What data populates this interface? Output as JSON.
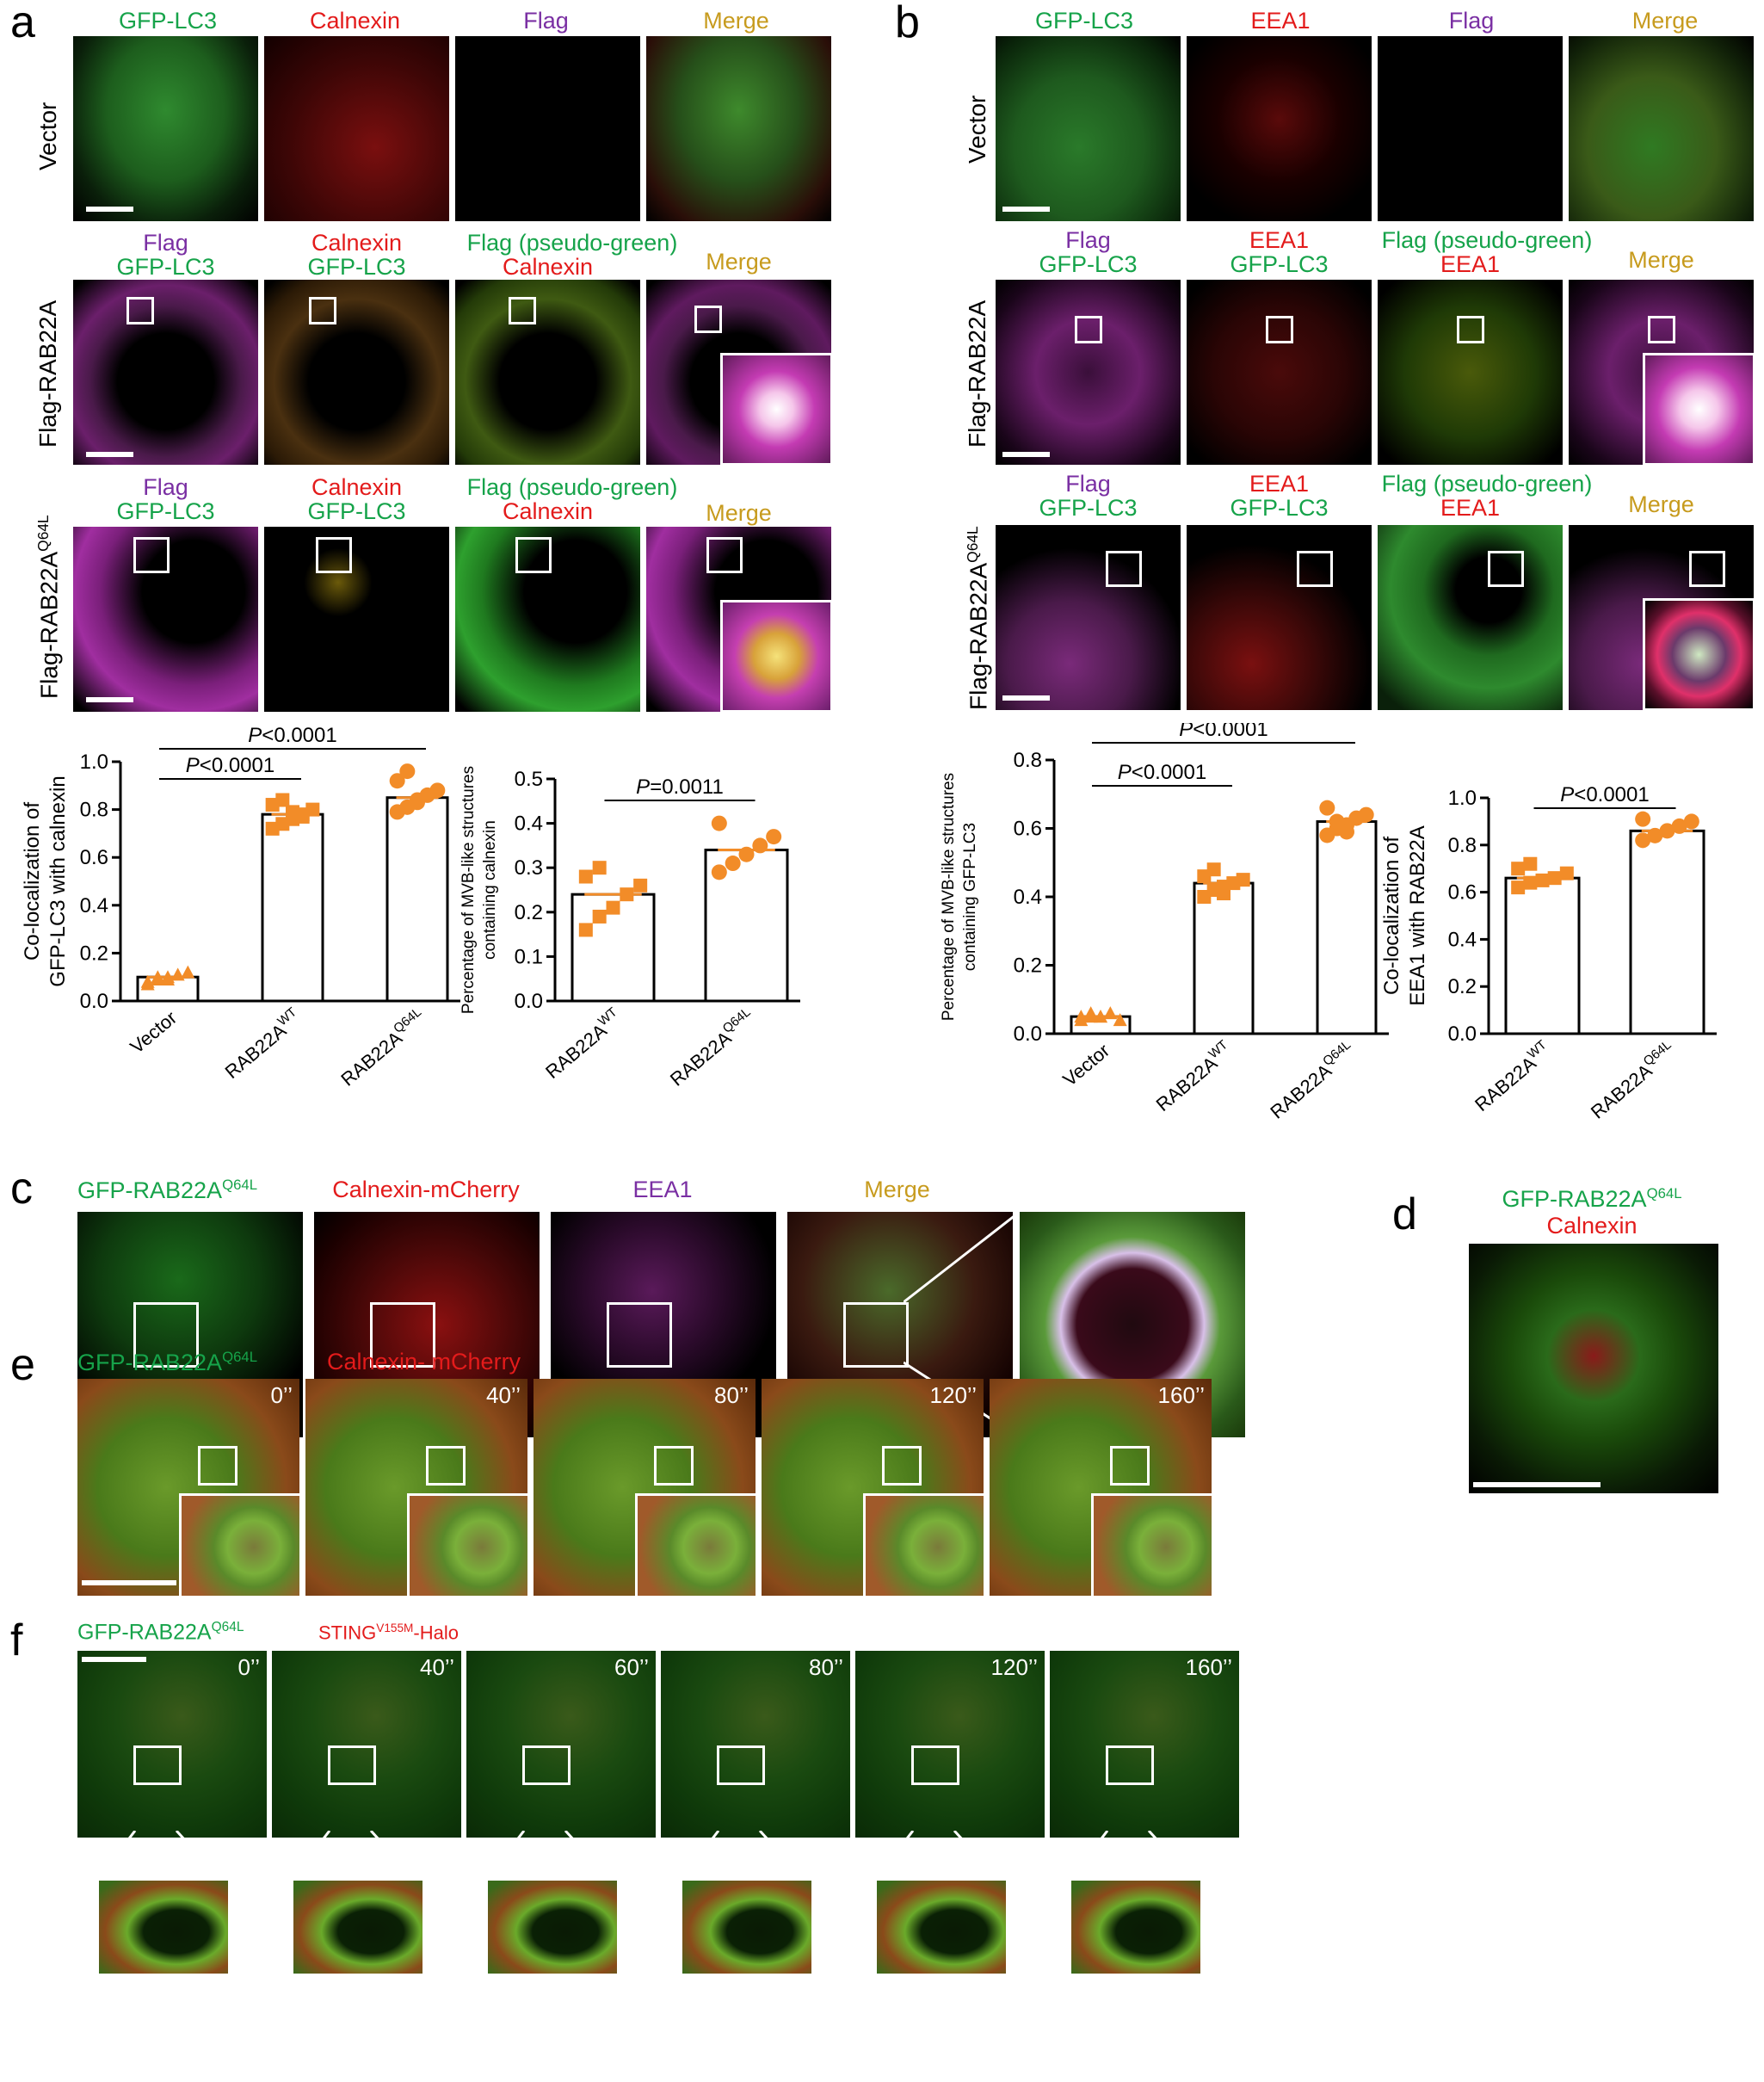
{
  "panel_letters": {
    "a": "a",
    "b": "b",
    "c": "c",
    "d": "d",
    "e": "e",
    "f": "f"
  },
  "panel_a": {
    "col_headers": [
      "GFP-LC3",
      "Calnexin",
      "Flag",
      "Merge"
    ],
    "row_labels": [
      "Vector",
      "Flag-RAB22A",
      "Flag-RAB22A^Q64L"
    ],
    "row2_headers": [
      [
        "Flag",
        "GFP-LC3"
      ],
      [
        "Calnexin",
        "GFP-LC3"
      ],
      [
        "Flag (pseudo-green)",
        "Calnexin"
      ],
      [
        "Merge"
      ]
    ],
    "row3_headers": [
      [
        "Flag",
        "GFP-LC3"
      ],
      [
        "Calnexin",
        "GFP-LC3"
      ],
      [
        "Flag (pseudo-green)",
        "Calnexin"
      ],
      [
        "Merge"
      ]
    ]
  },
  "panel_b": {
    "col_headers": [
      "GFP-LC3",
      "EEA1",
      "Flag",
      "Merge"
    ],
    "row_labels": [
      "Vector",
      "Flag-RAB22A",
      "Flag-RAB22A^Q64L"
    ],
    "row2_headers": [
      [
        "Flag",
        "GFP-LC3"
      ],
      [
        "EEA1",
        "GFP-LC3"
      ],
      [
        "Flag (pseudo-green)",
        "EEA1"
      ],
      [
        "Merge"
      ]
    ],
    "row3_headers": [
      [
        "Flag",
        "GFP-LC3"
      ],
      [
        "EEA1",
        "GFP-LC3"
      ],
      [
        "Flag (pseudo-green)",
        "EEA1"
      ],
      [
        "Merge"
      ]
    ]
  },
  "colors": {
    "green": "#16a34a",
    "red": "#e31b1b",
    "purple": "#7a2fa3",
    "gold": "#c79b1e",
    "bar_point": "#f28c28"
  },
  "chart_data": [
    {
      "type": "bar",
      "ylabel": "Co-localization of GFP-LC3 with calnexin",
      "categories": [
        "Vector",
        "RAB22A^WT",
        "RAB22A^Q64L"
      ],
      "values": [
        0.1,
        0.78,
        0.85
      ],
      "ylim": [
        0,
        1.0
      ],
      "yticks": [
        "0.0",
        "0.2",
        "0.4",
        "0.6",
        "0.8",
        "1.0"
      ],
      "points": [
        [
          0.07,
          0.09,
          0.1,
          0.11,
          0.12,
          0.08,
          0.1,
          0.09
        ],
        [
          0.72,
          0.74,
          0.76,
          0.78,
          0.8,
          0.82,
          0.84,
          0.79,
          0.77
        ],
        [
          0.79,
          0.81,
          0.84,
          0.86,
          0.88,
          0.92,
          0.96,
          0.83
        ]
      ],
      "annotations": [
        "P<0.0001",
        "P<0.0001"
      ]
    },
    {
      "type": "bar",
      "ylabel": "Percentage of MVB-like structures containing calnexin",
      "categories": [
        "RAB22A^WT",
        "RAB22A^Q64L"
      ],
      "values": [
        0.24,
        0.34
      ],
      "ylim": [
        0,
        0.5
      ],
      "yticks": [
        "0.0",
        "0.1",
        "0.2",
        "0.3",
        "0.4",
        "0.5"
      ],
      "points": [
        [
          0.16,
          0.19,
          0.21,
          0.24,
          0.26,
          0.28,
          0.3
        ],
        [
          0.29,
          0.31,
          0.33,
          0.35,
          0.37,
          0.4
        ]
      ],
      "annotations": [
        "P=0.0011"
      ]
    },
    {
      "type": "bar",
      "ylabel": "Percentage of MVB-like structures containing GFP-LC3",
      "categories": [
        "Vector",
        "RAB22A^WT",
        "RAB22A^Q64L"
      ],
      "values": [
        0.05,
        0.44,
        0.62
      ],
      "ylim": [
        0,
        0.8
      ],
      "yticks": [
        "0.0",
        "0.2",
        "0.4",
        "0.6",
        "0.8"
      ],
      "points": [
        [
          0.04,
          0.05,
          0.05,
          0.06,
          0.04,
          0.05,
          0.06,
          0.05
        ],
        [
          0.4,
          0.42,
          0.43,
          0.44,
          0.45,
          0.46,
          0.48,
          0.41
        ],
        [
          0.58,
          0.6,
          0.61,
          0.63,
          0.64,
          0.66,
          0.62,
          0.59
        ]
      ],
      "annotations": [
        "P<0.0001",
        "P<0.0001"
      ]
    },
    {
      "type": "bar",
      "ylabel": "Co-localization of EEA1 with RAB22A",
      "categories": [
        "RAB22A^WT",
        "RAB22A^Q64L"
      ],
      "values": [
        0.66,
        0.86
      ],
      "ylim": [
        0,
        1.0
      ],
      "yticks": [
        "0.0",
        "0.2",
        "0.4",
        "0.6",
        "0.8",
        "1.0"
      ],
      "points": [
        [
          0.62,
          0.64,
          0.65,
          0.66,
          0.68,
          0.7,
          0.72
        ],
        [
          0.82,
          0.84,
          0.86,
          0.88,
          0.9,
          0.91
        ]
      ],
      "annotations": [
        "P<0.0001"
      ]
    }
  ],
  "panel_c": {
    "headers": [
      "GFP-RAB22A^Q64L",
      "Calnexin-mCherry",
      "EEA1",
      "Merge"
    ]
  },
  "panel_d": {
    "headers": [
      "GFP-RAB22A^Q64L",
      "Calnexin"
    ]
  },
  "panel_e": {
    "headers": [
      "GFP-RAB22A^Q64L",
      "Calnexin- mCherry"
    ],
    "times": [
      "0’’",
      "40’’",
      "80’’",
      "120’’",
      "160’’"
    ]
  },
  "panel_f": {
    "headers": [
      "GFP-RAB22A^Q64L",
      "STING^V155M-Halo"
    ],
    "times": [
      "0’’",
      "40’’",
      "60’’",
      "80’’",
      "120’’",
      "160’’"
    ]
  }
}
